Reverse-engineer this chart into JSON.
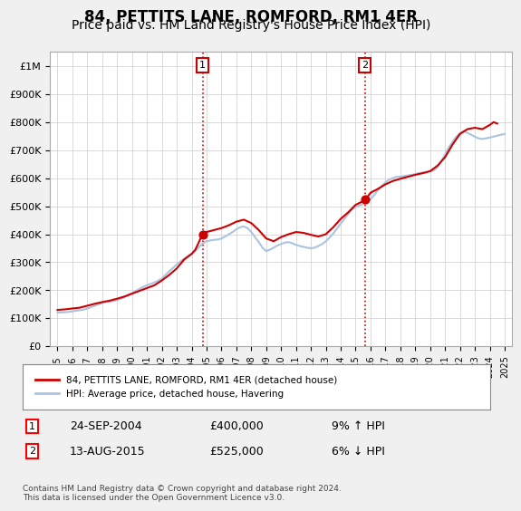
{
  "title": "84, PETTITS LANE, ROMFORD, RM1 4ER",
  "subtitle": "Price paid vs. HM Land Registry's House Price Index (HPI)",
  "title_fontsize": 12,
  "subtitle_fontsize": 10,
  "ylim": [
    0,
    1050000
  ],
  "yticks": [
    0,
    100000,
    200000,
    300000,
    400000,
    500000,
    600000,
    700000,
    800000,
    900000,
    1000000
  ],
  "ytick_labels": [
    "£0",
    "£100K",
    "£200K",
    "£300K",
    "£400K",
    "£500K",
    "£600K",
    "£700K",
    "£800K",
    "£900K",
    "£1M"
  ],
  "xlim_start": 1994.5,
  "xlim_end": 2025.5,
  "background_color": "#f0f0f0",
  "plot_bg_color": "#ffffff",
  "grid_color": "#cccccc",
  "hpi_color": "#aac4e0",
  "property_color": "#cc0000",
  "sale1_year": 2004.73,
  "sale1_price": 400000,
  "sale2_year": 2015.62,
  "sale2_price": 525000,
  "vline_color": "#cc0000",
  "vline_style": ":",
  "legend_label1": "84, PETTITS LANE, ROMFORD, RM1 4ER (detached house)",
  "legend_label2": "HPI: Average price, detached house, Havering",
  "annotation1_label": "1",
  "annotation1_date": "24-SEP-2004",
  "annotation1_price": "£400,000",
  "annotation1_hpi": "9% ↑ HPI",
  "annotation2_label": "2",
  "annotation2_date": "13-AUG-2015",
  "annotation2_price": "£525,000",
  "annotation2_hpi": "6% ↓ HPI",
  "footnote": "Contains HM Land Registry data © Crown copyright and database right 2024.\nThis data is licensed under the Open Government Licence v3.0.",
  "hpi_years": [
    1995,
    1995.25,
    1995.5,
    1995.75,
    1996,
    1996.25,
    1996.5,
    1996.75,
    1997,
    1997.25,
    1997.5,
    1997.75,
    1998,
    1998.25,
    1998.5,
    1998.75,
    1999,
    1999.25,
    1999.5,
    1999.75,
    2000,
    2000.25,
    2000.5,
    2000.75,
    2001,
    2001.25,
    2001.5,
    2001.75,
    2002,
    2002.25,
    2002.5,
    2002.75,
    2003,
    2003.25,
    2003.5,
    2003.75,
    2004,
    2004.25,
    2004.5,
    2004.75,
    2005,
    2005.25,
    2005.5,
    2005.75,
    2006,
    2006.25,
    2006.5,
    2006.75,
    2007,
    2007.25,
    2007.5,
    2007.75,
    2008,
    2008.25,
    2008.5,
    2008.75,
    2009,
    2009.25,
    2009.5,
    2009.75,
    2010,
    2010.25,
    2010.5,
    2010.75,
    2011,
    2011.25,
    2011.5,
    2011.75,
    2012,
    2012.25,
    2012.5,
    2012.75,
    2013,
    2013.25,
    2013.5,
    2013.75,
    2014,
    2014.25,
    2014.5,
    2014.75,
    2015,
    2015.25,
    2015.5,
    2015.75,
    2016,
    2016.25,
    2016.5,
    2016.75,
    2017,
    2017.25,
    2017.5,
    2017.75,
    2018,
    2018.25,
    2018.5,
    2018.75,
    2019,
    2019.25,
    2019.5,
    2019.75,
    2020,
    2020.25,
    2020.5,
    2020.75,
    2021,
    2021.25,
    2021.5,
    2021.75,
    2022,
    2022.25,
    2022.5,
    2022.75,
    2023,
    2023.25,
    2023.5,
    2023.75,
    2024,
    2024.25,
    2024.5,
    2024.75,
    2025
  ],
  "hpi_values": [
    120000,
    121000,
    122000,
    123000,
    125000,
    127000,
    129000,
    131000,
    135000,
    140000,
    145000,
    150000,
    155000,
    158000,
    160000,
    162000,
    165000,
    170000,
    176000,
    183000,
    190000,
    198000,
    205000,
    212000,
    218000,
    223000,
    228000,
    234000,
    242000,
    255000,
    268000,
    280000,
    292000,
    303000,
    313000,
    322000,
    330000,
    340000,
    355000,
    368000,
    375000,
    378000,
    380000,
    381000,
    385000,
    392000,
    400000,
    408000,
    418000,
    425000,
    428000,
    422000,
    408000,
    390000,
    372000,
    352000,
    340000,
    345000,
    352000,
    360000,
    365000,
    370000,
    372000,
    368000,
    362000,
    358000,
    355000,
    352000,
    350000,
    352000,
    358000,
    365000,
    375000,
    388000,
    403000,
    420000,
    438000,
    455000,
    472000,
    488000,
    497000,
    503000,
    508000,
    515000,
    525000,
    540000,
    558000,
    572000,
    585000,
    595000,
    600000,
    605000,
    605000,
    608000,
    610000,
    612000,
    615000,
    618000,
    620000,
    622000,
    625000,
    628000,
    640000,
    660000,
    685000,
    710000,
    730000,
    748000,
    760000,
    768000,
    762000,
    755000,
    748000,
    742000,
    740000,
    742000,
    745000,
    748000,
    752000,
    755000,
    758000
  ],
  "prop_years": [
    1995,
    1995.5,
    1996,
    1996.5,
    1997,
    1997.5,
    1998,
    1998.5,
    1999,
    1999.5,
    2000,
    2000.5,
    2001,
    2001.5,
    2002,
    2002.5,
    2003,
    2003.5,
    2004,
    2004.25,
    2004.73,
    2004.75,
    2005,
    2005.5,
    2006,
    2006.5,
    2007,
    2007.5,
    2008,
    2008.5,
    2009,
    2009.5,
    2010,
    2010.5,
    2011,
    2011.5,
    2012,
    2012.5,
    2013,
    2013.5,
    2014,
    2014.5,
    2015,
    2015.5,
    2015.62,
    2015.75,
    2016,
    2016.5,
    2017,
    2017.5,
    2018,
    2018.5,
    2019,
    2019.5,
    2020,
    2020.5,
    2021,
    2021.5,
    2022,
    2022.5,
    2023,
    2023.5,
    2024,
    2024.25,
    2024.5
  ],
  "prop_values": [
    130000,
    132000,
    135000,
    138000,
    145000,
    152000,
    158000,
    163000,
    170000,
    178000,
    188000,
    198000,
    208000,
    218000,
    235000,
    255000,
    278000,
    310000,
    330000,
    345000,
    400000,
    402000,
    408000,
    415000,
    422000,
    432000,
    445000,
    452000,
    440000,
    415000,
    385000,
    375000,
    390000,
    400000,
    408000,
    405000,
    398000,
    392000,
    400000,
    425000,
    455000,
    478000,
    505000,
    518000,
    525000,
    530000,
    548000,
    562000,
    578000,
    590000,
    598000,
    605000,
    612000,
    618000,
    625000,
    645000,
    675000,
    720000,
    758000,
    775000,
    780000,
    775000,
    790000,
    800000,
    795000
  ]
}
